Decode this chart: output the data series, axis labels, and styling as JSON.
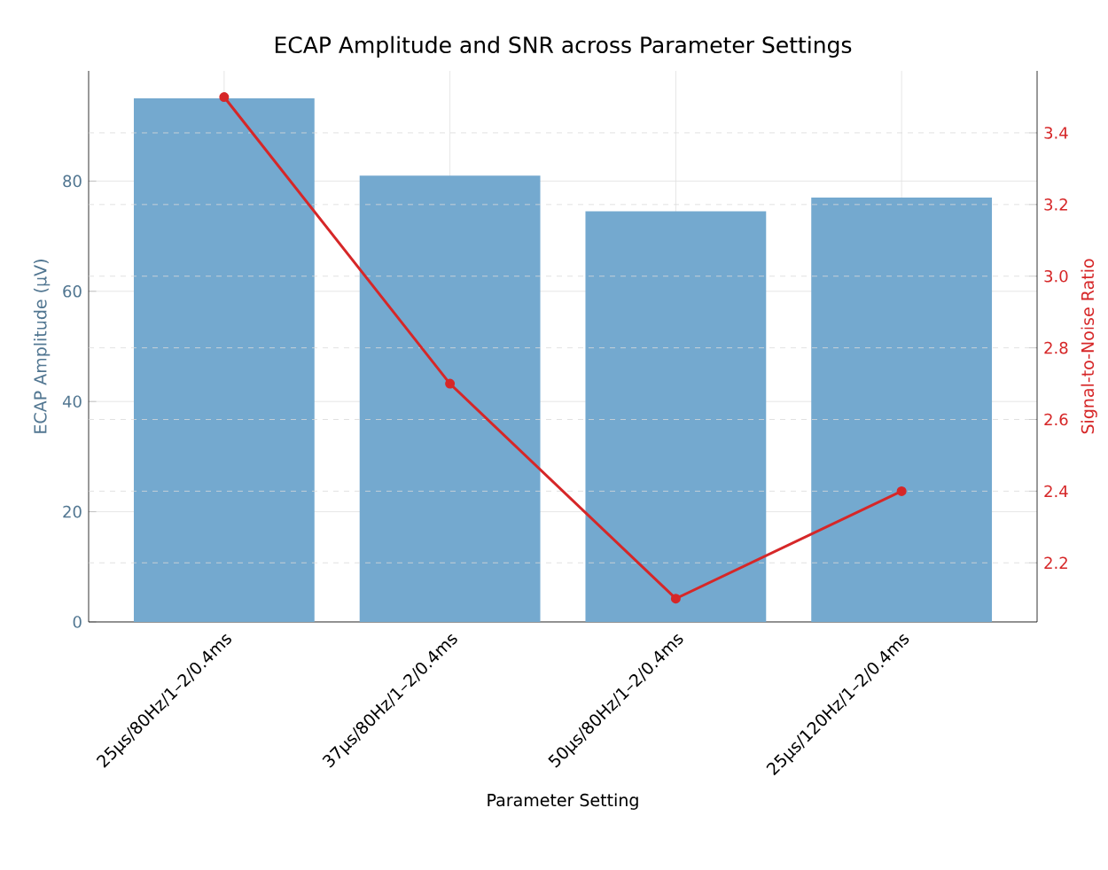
{
  "chart_data": {
    "type": "bar",
    "title": "ECAP Amplitude and SNR across Parameter Settings",
    "xlabel": "Parameter Setting",
    "ylabel": "ECAP Amplitude (µV)",
    "y2label": "Signal-to-Noise Ratio",
    "categories": [
      "25µs/80Hz/1–2/0.4ms",
      "37µs/80Hz/1–2/0.4ms",
      "50µs/80Hz/1–2/0.4ms",
      "25µs/120Hz/1–2/0.4ms"
    ],
    "series": [
      {
        "color": "#74a9cf",
        "values": [
          95,
          81,
          74.5,
          77
        ]
      },
      {
        "type": "line",
        "axis": "y2",
        "color": "#d62728",
        "marker": "circle",
        "line_style": "solid",
        "values": [
          3.5,
          2.7,
          2.1,
          2.4
        ]
      }
    ],
    "ylim": [
      0,
      100
    ],
    "yticks": [
      0,
      20,
      40,
      60,
      80
    ],
    "y2lim": [
      2.035,
      3.573
    ],
    "y2ticks": [
      2.2,
      2.4,
      2.6,
      2.8,
      {
        "value": 3.0,
        "label": "3.0"
      },
      3.2,
      3.4
    ],
    "grid": true
  }
}
